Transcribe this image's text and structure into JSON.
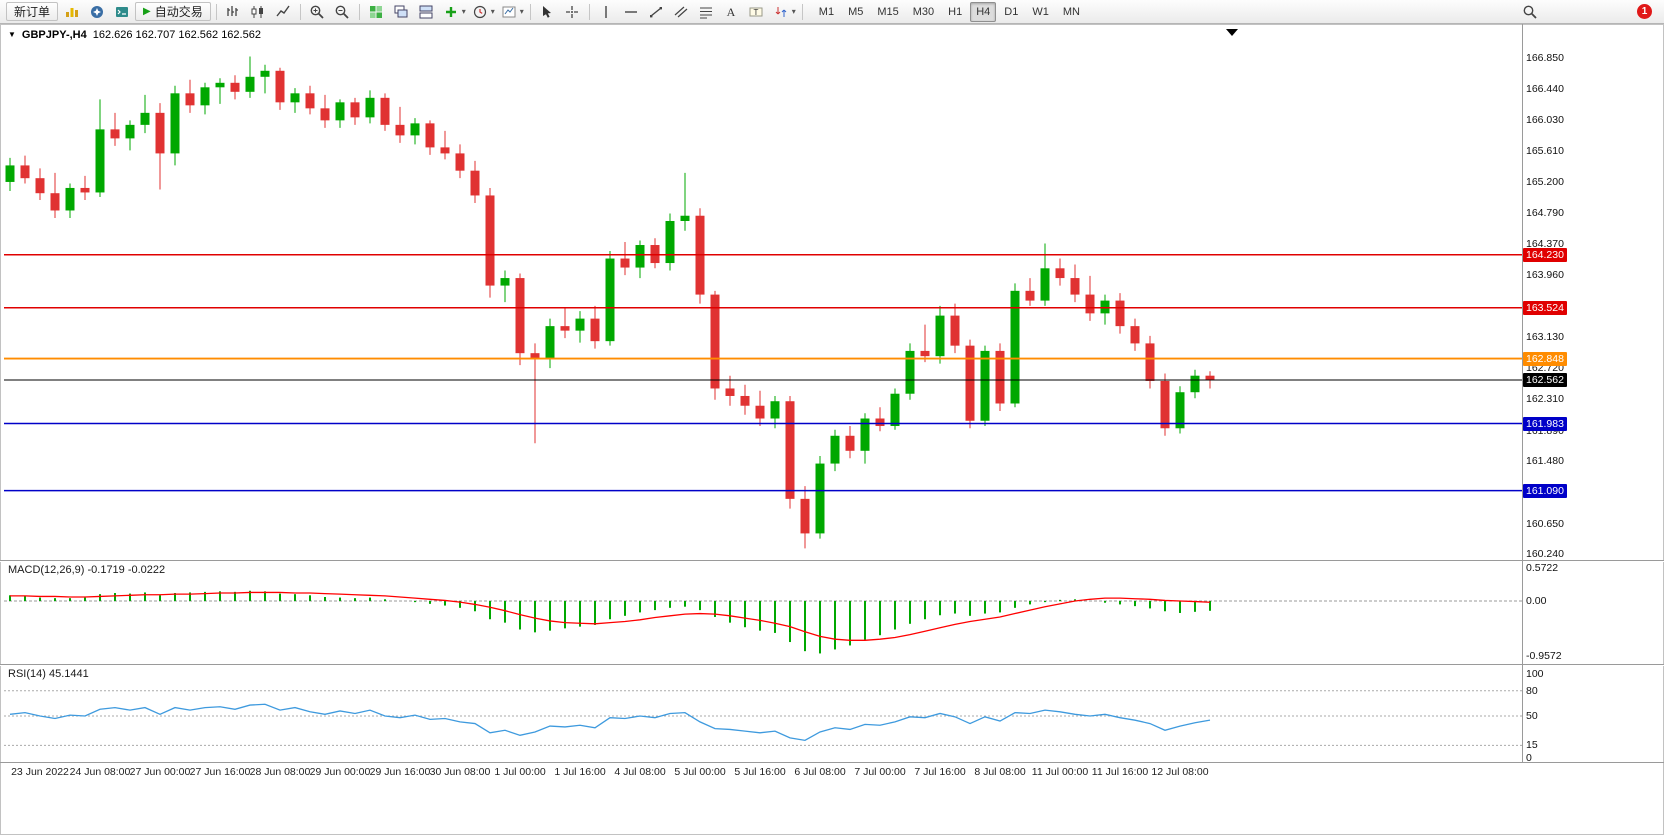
{
  "toolbar": {
    "new_order_label": "新订单",
    "autotrade_label": "自动交易",
    "left_icons": [
      "market-watch-icon",
      "navigator-icon",
      "terminal-icon"
    ],
    "main_icons": [
      "sep",
      "bar-chart-icon",
      "candlestick-chart-icon",
      "line-chart-icon",
      "sep",
      "zoom-in-icon",
      "zoom-out-icon",
      "sep",
      "tile-windows-icon",
      "cascade-windows-icon",
      "arrange-windows-icon",
      "indicators-icon+",
      "period-icon+",
      "chart-shift-icon+",
      "sep",
      "cursor-icon",
      "crosshair-icon",
      "sep",
      "vertical-line-icon",
      "horizontal-line-icon",
      "trendline-icon",
      "equidistant-channel-icon",
      "fibonacci-icon",
      "text-icon",
      "label-icon",
      "arrows-icon+",
      "sep"
    ],
    "timeframes": [
      "M1",
      "M5",
      "M15",
      "M30",
      "H1",
      "H4",
      "D1",
      "W1",
      "MN"
    ],
    "active_timeframe": "H4",
    "notification_count": "1"
  },
  "chart": {
    "symbol_title": "GBPJPY-,H4",
    "ohlc_display": "162.626 162.707 162.562 162.562"
  },
  "chart_data": {
    "type": "candlestick",
    "symbol": "GBPJPY-",
    "period": "H4",
    "price_axis_ticks": [
      "166.850",
      "166.440",
      "166.030",
      "165.610",
      "165.200",
      "164.790",
      "164.370",
      "163.960",
      "163.540",
      "163.130",
      "162.720",
      "162.310",
      "161.890",
      "161.480",
      "161.070",
      "160.650",
      "160.240"
    ],
    "hlines": [
      {
        "price": 164.23,
        "label": "164.230",
        "color": "#E00000",
        "width": 1.5
      },
      {
        "price": 163.524,
        "label": "163.524",
        "color": "#E00000",
        "width": 1.5
      },
      {
        "price": 162.848,
        "label": "162.848",
        "color": "#FF8C00",
        "width": 1.8
      },
      {
        "price": 162.562,
        "label": "162.562",
        "color": "#000000",
        "width": 1
      },
      {
        "price": 161.983,
        "label": "161.983",
        "color": "#0000C8",
        "width": 1.5
      },
      {
        "price": 161.09,
        "label": "161.090",
        "color": "#0000C8",
        "width": 1.5
      }
    ],
    "x_labels": [
      "23 Jun 2022",
      "24 Jun 08:00",
      "27 Jun 00:00",
      "27 Jun 16:00",
      "28 Jun 08:00",
      "29 Jun 00:00",
      "29 Jun 16:00",
      "30 Jun 08:00",
      "1 Jul 00:00",
      "1 Jul 16:00",
      "4 Jul 08:00",
      "5 Jul 00:00",
      "5 Jul 16:00",
      "6 Jul 08:00",
      "7 Jul 00:00",
      "7 Jul 16:00",
      "8 Jul 08:00",
      "11 Jul 00:00",
      "11 Jul 16:00",
      "12 Jul 08:00"
    ],
    "label_first_index": 2,
    "label_step": 4,
    "candles": [
      [
        165.2,
        165.52,
        165.08,
        165.42
      ],
      [
        165.42,
        165.55,
        165.18,
        165.25
      ],
      [
        165.25,
        165.38,
        164.96,
        165.05
      ],
      [
        165.05,
        165.32,
        164.72,
        164.82
      ],
      [
        164.82,
        165.18,
        164.72,
        165.12
      ],
      [
        165.12,
        165.28,
        164.96,
        165.06
      ],
      [
        165.06,
        166.3,
        165.0,
        165.9
      ],
      [
        165.9,
        166.12,
        165.68,
        165.78
      ],
      [
        165.78,
        166.02,
        165.62,
        165.96
      ],
      [
        165.96,
        166.36,
        165.85,
        166.12
      ],
      [
        166.12,
        166.25,
        165.1,
        165.58
      ],
      [
        165.58,
        166.48,
        165.42,
        166.38
      ],
      [
        166.38,
        166.56,
        166.12,
        166.22
      ],
      [
        166.22,
        166.52,
        166.1,
        166.46
      ],
      [
        166.46,
        166.58,
        166.24,
        166.52
      ],
      [
        166.52,
        166.62,
        166.3,
        166.4
      ],
      [
        166.4,
        166.87,
        166.32,
        166.6
      ],
      [
        166.6,
        166.76,
        166.38,
        166.68
      ],
      [
        166.68,
        166.72,
        166.16,
        166.26
      ],
      [
        166.26,
        166.45,
        166.12,
        166.38
      ],
      [
        166.38,
        166.48,
        166.1,
        166.18
      ],
      [
        166.18,
        166.36,
        165.92,
        166.02
      ],
      [
        166.02,
        166.3,
        165.92,
        166.26
      ],
      [
        166.26,
        166.32,
        165.96,
        166.06
      ],
      [
        166.06,
        166.42,
        165.98,
        166.32
      ],
      [
        166.32,
        166.38,
        165.88,
        165.96
      ],
      [
        165.96,
        166.2,
        165.72,
        165.82
      ],
      [
        165.82,
        166.05,
        165.7,
        165.98
      ],
      [
        165.98,
        166.02,
        165.56,
        165.66
      ],
      [
        165.66,
        165.88,
        165.5,
        165.58
      ],
      [
        165.58,
        165.7,
        165.25,
        165.35
      ],
      [
        165.35,
        165.48,
        164.92,
        165.02
      ],
      [
        165.02,
        165.12,
        163.66,
        163.82
      ],
      [
        163.82,
        164.02,
        163.6,
        163.92
      ],
      [
        163.92,
        163.98,
        162.76,
        162.92
      ],
      [
        162.92,
        163.05,
        161.72,
        162.85
      ],
      [
        162.85,
        163.38,
        162.72,
        163.28
      ],
      [
        163.28,
        163.52,
        163.12,
        163.22
      ],
      [
        163.22,
        163.48,
        163.06,
        163.38
      ],
      [
        163.38,
        163.55,
        162.98,
        163.08
      ],
      [
        163.08,
        164.28,
        163.02,
        164.18
      ],
      [
        164.18,
        164.4,
        163.96,
        164.06
      ],
      [
        164.06,
        164.42,
        163.92,
        164.36
      ],
      [
        164.36,
        164.45,
        164.05,
        164.12
      ],
      [
        164.12,
        164.78,
        164.02,
        164.68
      ],
      [
        164.68,
        165.32,
        164.55,
        164.75
      ],
      [
        164.75,
        164.85,
        163.58,
        163.7
      ],
      [
        163.7,
        163.75,
        162.3,
        162.45
      ],
      [
        162.45,
        162.62,
        162.22,
        162.35
      ],
      [
        162.35,
        162.5,
        162.1,
        162.22
      ],
      [
        162.22,
        162.42,
        161.95,
        162.05
      ],
      [
        162.05,
        162.35,
        161.92,
        162.28
      ],
      [
        162.28,
        162.35,
        160.85,
        160.98
      ],
      [
        160.98,
        161.15,
        160.32,
        160.52
      ],
      [
        160.52,
        161.55,
        160.45,
        161.45
      ],
      [
        161.45,
        161.9,
        161.35,
        161.82
      ],
      [
        161.82,
        161.95,
        161.52,
        161.62
      ],
      [
        161.62,
        162.12,
        161.45,
        162.05
      ],
      [
        162.05,
        162.2,
        161.88,
        161.95
      ],
      [
        161.95,
        162.45,
        161.9,
        162.38
      ],
      [
        162.38,
        163.05,
        162.3,
        162.95
      ],
      [
        162.95,
        163.3,
        162.8,
        162.88
      ],
      [
        162.88,
        163.55,
        162.78,
        163.42
      ],
      [
        163.42,
        163.58,
        162.92,
        163.02
      ],
      [
        163.02,
        163.1,
        161.92,
        162.02
      ],
      [
        162.02,
        163.02,
        161.95,
        162.95
      ],
      [
        162.95,
        163.05,
        162.15,
        162.25
      ],
      [
        162.25,
        163.85,
        162.2,
        163.75
      ],
      [
        163.75,
        163.92,
        163.55,
        163.62
      ],
      [
        163.62,
        164.38,
        163.55,
        164.05
      ],
      [
        164.05,
        164.18,
        163.82,
        163.92
      ],
      [
        163.92,
        164.1,
        163.6,
        163.7
      ],
      [
        163.7,
        163.95,
        163.35,
        163.45
      ],
      [
        163.45,
        163.7,
        163.3,
        163.62
      ],
      [
        163.62,
        163.72,
        163.18,
        163.28
      ],
      [
        163.28,
        163.38,
        162.95,
        163.05
      ],
      [
        163.05,
        163.15,
        162.45,
        162.55
      ],
      [
        162.55,
        162.65,
        161.82,
        161.92
      ],
      [
        161.92,
        162.48,
        161.85,
        162.4
      ],
      [
        162.4,
        162.7,
        162.32,
        162.62
      ],
      [
        162.62,
        162.68,
        162.45,
        162.562
      ]
    ],
    "macd": {
      "title": "MACD(12,26,9)",
      "values_text": "-0.1719 -0.0222",
      "scale_ticks": [
        "0.5722",
        "0.00",
        "-0.9572"
      ],
      "histogram": [
        0.1,
        0.08,
        0.06,
        0.05,
        0.05,
        0.06,
        0.12,
        0.14,
        0.13,
        0.15,
        0.1,
        0.14,
        0.15,
        0.16,
        0.17,
        0.16,
        0.18,
        0.17,
        0.13,
        0.12,
        0.1,
        0.07,
        0.06,
        0.05,
        0.06,
        0.03,
        0.0,
        -0.02,
        -0.05,
        -0.08,
        -0.12,
        -0.18,
        -0.32,
        -0.38,
        -0.5,
        -0.55,
        -0.52,
        -0.48,
        -0.45,
        -0.42,
        -0.32,
        -0.26,
        -0.2,
        -0.16,
        -0.12,
        -0.1,
        -0.16,
        -0.28,
        -0.38,
        -0.46,
        -0.52,
        -0.56,
        -0.72,
        -0.88,
        -0.92,
        -0.85,
        -0.78,
        -0.68,
        -0.6,
        -0.5,
        -0.4,
        -0.32,
        -0.25,
        -0.22,
        -0.26,
        -0.22,
        -0.2,
        -0.12,
        -0.06,
        -0.02,
        0.02,
        0.03,
        0.0,
        -0.03,
        -0.06,
        -0.09,
        -0.13,
        -0.18,
        -0.21,
        -0.19,
        -0.1719
      ],
      "signal": [
        0.09,
        0.09,
        0.08,
        0.08,
        0.07,
        0.07,
        0.08,
        0.09,
        0.1,
        0.11,
        0.11,
        0.12,
        0.12,
        0.13,
        0.14,
        0.14,
        0.15,
        0.15,
        0.15,
        0.14,
        0.14,
        0.13,
        0.12,
        0.11,
        0.1,
        0.09,
        0.07,
        0.05,
        0.03,
        0.01,
        -0.02,
        -0.06,
        -0.11,
        -0.17,
        -0.24,
        -0.3,
        -0.35,
        -0.38,
        -0.39,
        -0.4,
        -0.38,
        -0.36,
        -0.33,
        -0.29,
        -0.26,
        -0.23,
        -0.22,
        -0.23,
        -0.26,
        -0.3,
        -0.34,
        -0.39,
        -0.45,
        -0.54,
        -0.62,
        -0.67,
        -0.69,
        -0.69,
        -0.67,
        -0.64,
        -0.59,
        -0.53,
        -0.47,
        -0.41,
        -0.36,
        -0.32,
        -0.28,
        -0.22,
        -0.16,
        -0.1,
        -0.05,
        0.0,
        0.03,
        0.05,
        0.05,
        0.04,
        0.03,
        0.01,
        0.0,
        -0.01,
        -0.0222
      ]
    },
    "rsi": {
      "title": "RSI(14)",
      "value_text": "45.1441",
      "scale_ticks": [
        "100",
        "80",
        "50",
        "15",
        "0"
      ],
      "level_lines": [
        80,
        50,
        15
      ],
      "values": [
        52,
        54,
        50,
        47,
        51,
        50,
        58,
        60,
        57,
        60,
        52,
        60,
        57,
        60,
        61,
        58,
        63,
        64,
        57,
        60,
        55,
        52,
        56,
        53,
        57,
        50,
        48,
        51,
        46,
        47,
        43,
        41,
        30,
        33,
        27,
        31,
        38,
        37,
        39,
        36,
        48,
        47,
        50,
        48,
        53,
        54,
        43,
        35,
        34,
        32,
        30,
        32,
        24,
        21,
        31,
        36,
        34,
        40,
        39,
        43,
        49,
        48,
        53,
        49,
        41,
        49,
        44,
        54,
        53,
        57,
        55,
        52,
        50,
        52,
        48,
        45,
        41,
        33,
        38,
        42,
        45.14
      ]
    },
    "colors": {
      "bull": "#00A800",
      "bear": "#E03232",
      "macd_hist": "#00A800",
      "macd_signal": "#FF0000",
      "rsi_line": "#3E9ADE"
    }
  }
}
